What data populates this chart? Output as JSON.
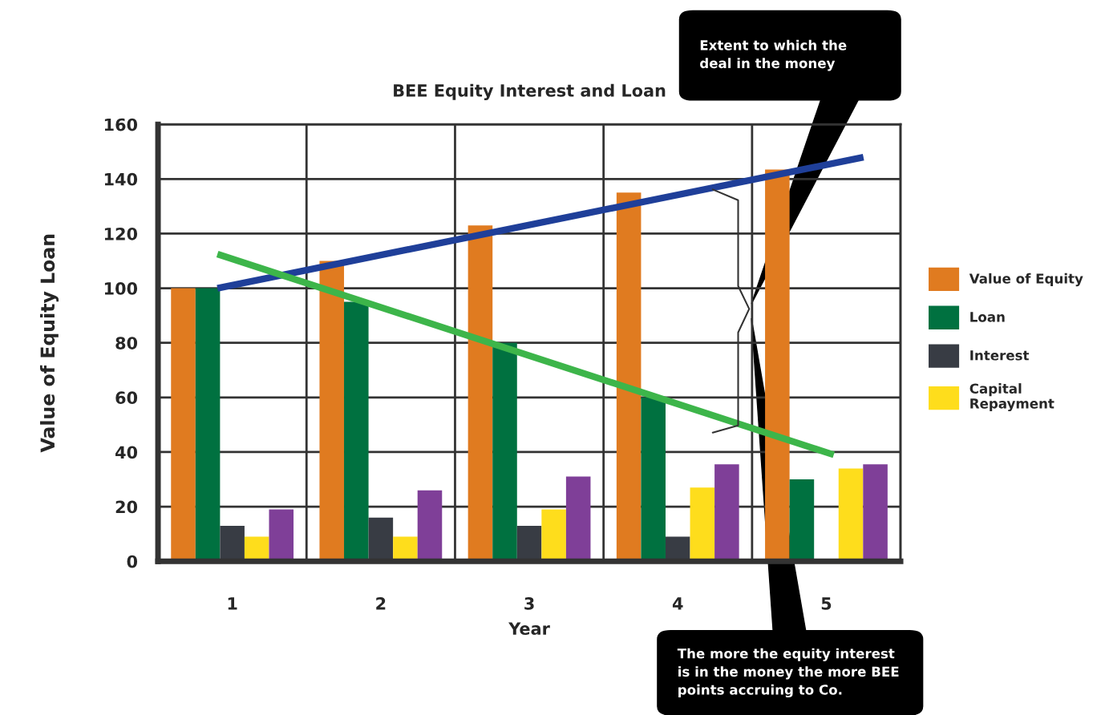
{
  "chart_data": {
    "type": "bar",
    "title": "BEE Equity Interest and Loan",
    "xlabel": "Year",
    "ylabel": "Value of Equity Loan",
    "x": [
      1,
      2,
      3,
      4,
      5
    ],
    "xlim": [
      0.5,
      5.5
    ],
    "xticks": [
      {
        "value": 0.5,
        "label": null
      },
      1,
      {
        "value": 1.5,
        "label": null
      },
      2,
      {
        "value": 2.5,
        "label": null
      },
      3,
      {
        "value": 3.5,
        "label": null
      },
      4,
      {
        "value": 4.5,
        "label": null
      },
      5,
      {
        "value": 5.5,
        "label": null
      }
    ],
    "ylim": [
      0,
      160
    ],
    "yticks": [
      0,
      20,
      40,
      60,
      80,
      100,
      120,
      140,
      160
    ],
    "grid": true,
    "legend": "right",
    "series": [
      {
        "name": "Value of Equity",
        "color": "#e07b20",
        "values": [
          100,
          110,
          123,
          135,
          143.5
        ]
      },
      {
        "name": "Loan",
        "color": "#007140",
        "values": [
          100,
          95,
          80,
          60,
          30
        ]
      },
      {
        "name": "Interest",
        "color": "#383c44",
        "values": [
          13,
          16,
          13,
          9,
          null
        ]
      },
      {
        "name": "Capital\nRepayment",
        "color": "#fedd1c",
        "values": [
          9,
          9,
          19,
          27,
          34
        ]
      },
      {
        "color": "#7f3f98",
        "values": [
          19,
          26,
          31,
          35.5,
          35.5
        ]
      },
      {
        "type": "line",
        "color": "#1f3f99",
        "x": [
          0.9,
          5.25
        ],
        "values": [
          100,
          148
        ]
      },
      {
        "type": "line",
        "color": "#3db54a",
        "x": [
          0.9,
          5.05
        ],
        "values": [
          112.5,
          39
        ]
      }
    ],
    "annotations": [
      "Extent to which the\ndeal in the money",
      "The more the equity interest\nis in the money the more BEE\npoints accruing to Co."
    ]
  }
}
